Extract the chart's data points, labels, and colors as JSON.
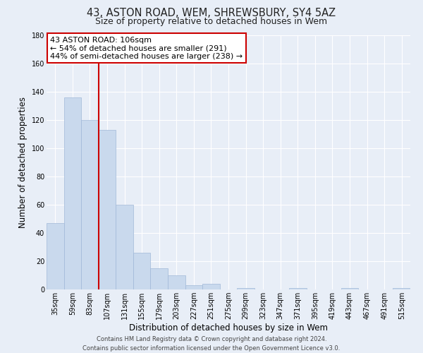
{
  "title": "43, ASTON ROAD, WEM, SHREWSBURY, SY4 5AZ",
  "subtitle": "Size of property relative to detached houses in Wem",
  "xlabel": "Distribution of detached houses by size in Wem",
  "ylabel": "Number of detached properties",
  "bin_labels": [
    "35sqm",
    "59sqm",
    "83sqm",
    "107sqm",
    "131sqm",
    "155sqm",
    "179sqm",
    "203sqm",
    "227sqm",
    "251sqm",
    "275sqm",
    "299sqm",
    "323sqm",
    "347sqm",
    "371sqm",
    "395sqm",
    "419sqm",
    "443sqm",
    "467sqm",
    "491sqm",
    "515sqm"
  ],
  "bar_values": [
    47,
    136,
    120,
    113,
    60,
    26,
    15,
    10,
    3,
    4,
    0,
    1,
    0,
    0,
    1,
    0,
    0,
    1,
    0,
    0,
    1
  ],
  "bar_color": "#c9d9ed",
  "bar_edge_color": "#a0b8d8",
  "background_color": "#e8eef7",
  "grid_color": "#ffffff",
  "vline_index": 3,
  "vline_color": "#cc0000",
  "ylim": [
    0,
    180
  ],
  "yticks": [
    0,
    20,
    40,
    60,
    80,
    100,
    120,
    140,
    160,
    180
  ],
  "annotation_title": "43 ASTON ROAD: 106sqm",
  "annotation_line1": "← 54% of detached houses are smaller (291)",
  "annotation_line2": "44% of semi-detached houses are larger (238) →",
  "annotation_box_color": "#ffffff",
  "annotation_edge_color": "#cc0000",
  "footer_line1": "Contains HM Land Registry data © Crown copyright and database right 2024.",
  "footer_line2": "Contains public sector information licensed under the Open Government Licence v3.0.",
  "title_fontsize": 10.5,
  "subtitle_fontsize": 9,
  "xlabel_fontsize": 8.5,
  "ylabel_fontsize": 8.5,
  "tick_fontsize": 7,
  "footer_fontsize": 6,
  "annotation_fontsize": 8
}
